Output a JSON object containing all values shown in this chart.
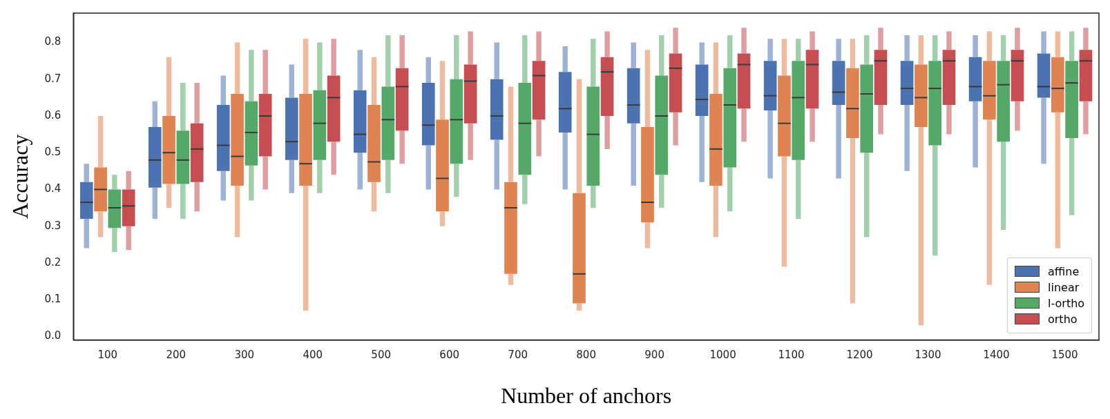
{
  "chart_data": {
    "type": "box",
    "xlabel": "Number of anchors",
    "ylabel": "Accuracy",
    "categories": [
      "100",
      "200",
      "300",
      "400",
      "500",
      "600",
      "700",
      "800",
      "900",
      "1000",
      "1100",
      "1200",
      "1300",
      "1400",
      "1500"
    ],
    "ylim": [
      -0.01,
      0.88
    ],
    "yticks": [
      {
        "value": 0,
        "label": "0.0"
      },
      0.1,
      0.2,
      0.3,
      0.4,
      0.5,
      0.6,
      0.7,
      0.8
    ],
    "grid": false,
    "legend": "bottom right",
    "series": [
      {
        "name": "affine",
        "color": "#4c72b0",
        "boxes": [
          {
            "low": 0.24,
            "q1": 0.32,
            "median": 0.365,
            "q3": 0.42,
            "high": 0.47
          },
          {
            "low": 0.32,
            "q1": 0.405,
            "median": 0.48,
            "q3": 0.57,
            "high": 0.64
          },
          {
            "low": 0.37,
            "q1": 0.45,
            "median": 0.52,
            "q3": 0.63,
            "high": 0.71
          },
          {
            "low": 0.39,
            "q1": 0.48,
            "median": 0.53,
            "q3": 0.65,
            "high": 0.74
          },
          {
            "low": 0.4,
            "q1": 0.5,
            "median": 0.55,
            "q3": 0.67,
            "high": 0.78
          },
          {
            "low": 0.4,
            "q1": 0.52,
            "median": 0.575,
            "q3": 0.69,
            "high": 0.76
          },
          {
            "low": 0.4,
            "q1": 0.535,
            "median": 0.6,
            "q3": 0.7,
            "high": 0.8
          },
          {
            "low": 0.4,
            "q1": 0.555,
            "median": 0.62,
            "q3": 0.72,
            "high": 0.79
          },
          {
            "low": 0.41,
            "q1": 0.58,
            "median": 0.63,
            "q3": 0.73,
            "high": 0.8
          },
          {
            "low": 0.42,
            "q1": 0.6,
            "median": 0.645,
            "q3": 0.74,
            "high": 0.8
          },
          {
            "low": 0.43,
            "q1": 0.615,
            "median": 0.655,
            "q3": 0.75,
            "high": 0.81
          },
          {
            "low": 0.43,
            "q1": 0.63,
            "median": 0.665,
            "q3": 0.75,
            "high": 0.81
          },
          {
            "low": 0.45,
            "q1": 0.63,
            "median": 0.675,
            "q3": 0.75,
            "high": 0.82
          },
          {
            "low": 0.46,
            "q1": 0.64,
            "median": 0.68,
            "q3": 0.76,
            "high": 0.82
          },
          {
            "low": 0.47,
            "q1": 0.65,
            "median": 0.68,
            "q3": 0.77,
            "high": 0.83
          }
        ]
      },
      {
        "name": "linear",
        "color": "#dd8452",
        "boxes": [
          {
            "low": 0.27,
            "q1": 0.34,
            "median": 0.4,
            "q3": 0.46,
            "high": 0.6
          },
          {
            "low": 0.35,
            "q1": 0.415,
            "median": 0.5,
            "q3": 0.6,
            "high": 0.76
          },
          {
            "low": 0.27,
            "q1": 0.41,
            "median": 0.49,
            "q3": 0.66,
            "high": 0.8
          },
          {
            "low": 0.07,
            "q1": 0.41,
            "median": 0.47,
            "q3": 0.66,
            "high": 0.81
          },
          {
            "low": 0.34,
            "q1": 0.42,
            "median": 0.475,
            "q3": 0.63,
            "high": 0.76
          },
          {
            "low": 0.3,
            "q1": 0.34,
            "median": 0.43,
            "q3": 0.59,
            "high": 0.75
          },
          {
            "low": 0.14,
            "q1": 0.17,
            "median": 0.35,
            "q3": 0.42,
            "high": 0.68
          },
          {
            "low": 0.07,
            "q1": 0.09,
            "median": 0.17,
            "q3": 0.39,
            "high": 0.7
          },
          {
            "low": 0.24,
            "q1": 0.31,
            "median": 0.365,
            "q3": 0.57,
            "high": 0.78
          },
          {
            "low": 0.27,
            "q1": 0.41,
            "median": 0.51,
            "q3": 0.66,
            "high": 0.8
          },
          {
            "low": 0.19,
            "q1": 0.49,
            "median": 0.58,
            "q3": 0.71,
            "high": 0.81
          },
          {
            "low": 0.09,
            "q1": 0.54,
            "median": 0.62,
            "q3": 0.73,
            "high": 0.81
          },
          {
            "low": 0.03,
            "q1": 0.57,
            "median": 0.65,
            "q3": 0.74,
            "high": 0.82
          },
          {
            "low": 0.14,
            "q1": 0.59,
            "median": 0.655,
            "q3": 0.75,
            "high": 0.83
          },
          {
            "low": 0.24,
            "q1": 0.61,
            "median": 0.675,
            "q3": 0.76,
            "high": 0.83
          }
        ]
      },
      {
        "name": "l-ortho",
        "color": "#55a868",
        "boxes": [
          {
            "low": 0.23,
            "q1": 0.295,
            "median": 0.35,
            "q3": 0.4,
            "high": 0.44
          },
          {
            "low": 0.32,
            "q1": 0.415,
            "median": 0.48,
            "q3": 0.56,
            "high": 0.69
          },
          {
            "low": 0.37,
            "q1": 0.465,
            "median": 0.555,
            "q3": 0.64,
            "high": 0.78
          },
          {
            "low": 0.39,
            "q1": 0.48,
            "median": 0.58,
            "q3": 0.67,
            "high": 0.8
          },
          {
            "low": 0.39,
            "q1": 0.48,
            "median": 0.59,
            "q3": 0.68,
            "high": 0.82
          },
          {
            "low": 0.38,
            "q1": 0.47,
            "median": 0.59,
            "q3": 0.7,
            "high": 0.82
          },
          {
            "low": 0.36,
            "q1": 0.44,
            "median": 0.58,
            "q3": 0.69,
            "high": 0.82
          },
          {
            "low": 0.35,
            "q1": 0.41,
            "median": 0.55,
            "q3": 0.68,
            "high": 0.81
          },
          {
            "low": 0.35,
            "q1": 0.44,
            "median": 0.6,
            "q3": 0.71,
            "high": 0.82
          },
          {
            "low": 0.34,
            "q1": 0.46,
            "median": 0.63,
            "q3": 0.73,
            "high": 0.82
          },
          {
            "low": 0.32,
            "q1": 0.48,
            "median": 0.65,
            "q3": 0.75,
            "high": 0.81
          },
          {
            "low": 0.27,
            "q1": 0.5,
            "median": 0.66,
            "q3": 0.74,
            "high": 0.82
          },
          {
            "low": 0.22,
            "q1": 0.52,
            "median": 0.675,
            "q3": 0.75,
            "high": 0.82
          },
          {
            "low": 0.29,
            "q1": 0.53,
            "median": 0.685,
            "q3": 0.75,
            "high": 0.82
          },
          {
            "low": 0.33,
            "q1": 0.54,
            "median": 0.69,
            "q3": 0.75,
            "high": 0.83
          }
        ]
      },
      {
        "name": "ortho",
        "color": "#c44e52",
        "boxes": [
          {
            "low": 0.235,
            "q1": 0.3,
            "median": 0.355,
            "q3": 0.4,
            "high": 0.45
          },
          {
            "low": 0.34,
            "q1": 0.42,
            "median": 0.51,
            "q3": 0.58,
            "high": 0.69
          },
          {
            "low": 0.4,
            "q1": 0.49,
            "median": 0.6,
            "q3": 0.66,
            "high": 0.78
          },
          {
            "low": 0.44,
            "q1": 0.53,
            "median": 0.65,
            "q3": 0.71,
            "high": 0.81
          },
          {
            "low": 0.47,
            "q1": 0.56,
            "median": 0.68,
            "q3": 0.73,
            "high": 0.82
          },
          {
            "low": 0.48,
            "q1": 0.58,
            "median": 0.695,
            "q3": 0.74,
            "high": 0.83
          },
          {
            "low": 0.49,
            "q1": 0.59,
            "median": 0.71,
            "q3": 0.75,
            "high": 0.83
          },
          {
            "low": 0.51,
            "q1": 0.6,
            "median": 0.72,
            "q3": 0.76,
            "high": 0.83
          },
          {
            "low": 0.52,
            "q1": 0.61,
            "median": 0.73,
            "q3": 0.77,
            "high": 0.84
          },
          {
            "low": 0.53,
            "q1": 0.62,
            "median": 0.74,
            "q3": 0.77,
            "high": 0.84
          },
          {
            "low": 0.53,
            "q1": 0.62,
            "median": 0.74,
            "q3": 0.78,
            "high": 0.83
          },
          {
            "low": 0.55,
            "q1": 0.63,
            "median": 0.75,
            "q3": 0.78,
            "high": 0.84
          },
          {
            "low": 0.55,
            "q1": 0.63,
            "median": 0.75,
            "q3": 0.78,
            "high": 0.83
          },
          {
            "low": 0.56,
            "q1": 0.64,
            "median": 0.75,
            "q3": 0.78,
            "high": 0.84
          },
          {
            "low": 0.55,
            "q1": 0.64,
            "median": 0.75,
            "q3": 0.78,
            "high": 0.84
          }
        ]
      }
    ]
  }
}
